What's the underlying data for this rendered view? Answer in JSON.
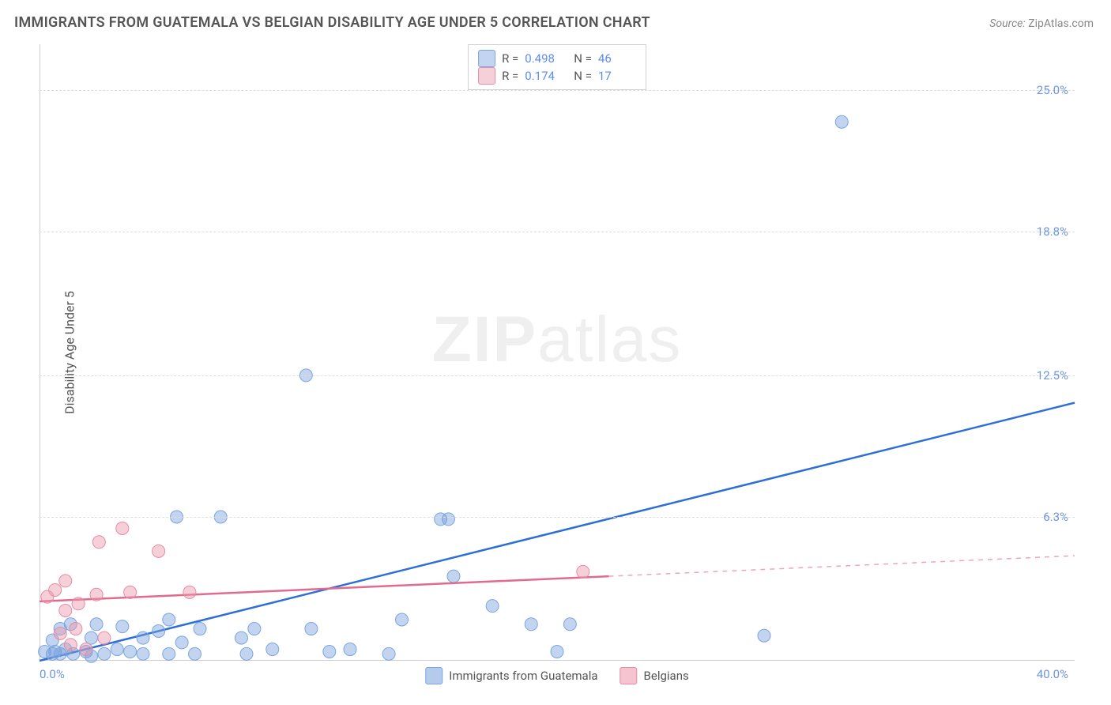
{
  "title": "IMMIGRANTS FROM GUATEMALA VS BELGIAN DISABILITY AGE UNDER 5 CORRELATION CHART",
  "source_label": "Source:",
  "source_value": "ZipAtlas.com",
  "ylabel": "Disability Age Under 5",
  "watermark": {
    "bold": "ZIP",
    "rest": "atlas"
  },
  "chart": {
    "type": "scatter-with-regression",
    "plot_bg": "#ffffff",
    "grid_color": "#dedede",
    "axis_color": "#cfcfcf",
    "tick_color": "#6b95e0",
    "label_fontsize": 16,
    "tick_fontsize": 15,
    "xlim": [
      0,
      40
    ],
    "ylim": [
      0,
      27
    ],
    "xticks": [
      {
        "pos": 0,
        "label": "0.0%",
        "side": "left"
      },
      {
        "pos": 40,
        "label": "40.0%",
        "side": "right"
      }
    ],
    "yticks": [
      {
        "pos": 25.0,
        "label": "25.0%"
      },
      {
        "pos": 18.8,
        "label": "18.8%"
      },
      {
        "pos": 12.5,
        "label": "12.5%"
      },
      {
        "pos": 6.3,
        "label": "6.3%"
      }
    ],
    "marker_radius": 8,
    "marker_stroke_width": 1,
    "line_width": 2.5,
    "series": [
      {
        "name": "Immigrants from Guatemala",
        "fill": "rgba(120,160,220,0.45)",
        "stroke": "#7aa6e0",
        "line_color": "#2e6fd6",
        "R": "0.498",
        "N": "46",
        "reg_line": {
          "x1": 0,
          "y1": 0,
          "x2": 40,
          "y2": 11.3
        },
        "dashed_ext": null,
        "points": [
          [
            0.2,
            0.4
          ],
          [
            0.5,
            0.3
          ],
          [
            0.5,
            0.9
          ],
          [
            0.6,
            0.4
          ],
          [
            0.8,
            1.4
          ],
          [
            0.8,
            0.3
          ],
          [
            1.0,
            0.5
          ],
          [
            1.2,
            1.6
          ],
          [
            1.3,
            0.3
          ],
          [
            1.8,
            0.4
          ],
          [
            2.0,
            1.0
          ],
          [
            2.0,
            0.2
          ],
          [
            2.2,
            1.6
          ],
          [
            2.5,
            0.3
          ],
          [
            3.0,
            0.5
          ],
          [
            3.2,
            1.5
          ],
          [
            3.5,
            0.4
          ],
          [
            4.0,
            0.3
          ],
          [
            4.0,
            1.0
          ],
          [
            4.6,
            1.3
          ],
          [
            5.0,
            0.3
          ],
          [
            5.0,
            1.8
          ],
          [
            5.5,
            0.8
          ],
          [
            5.3,
            6.3
          ],
          [
            6.0,
            0.3
          ],
          [
            6.2,
            1.4
          ],
          [
            7.0,
            6.3
          ],
          [
            7.8,
            1.0
          ],
          [
            8.0,
            0.3
          ],
          [
            8.3,
            1.4
          ],
          [
            9.0,
            0.5
          ],
          [
            10.5,
            1.4
          ],
          [
            11.2,
            0.4
          ],
          [
            12.0,
            0.5
          ],
          [
            13.5,
            0.3
          ],
          [
            14.0,
            1.8
          ],
          [
            15.5,
            6.2
          ],
          [
            15.8,
            6.2
          ],
          [
            16.0,
            3.7
          ],
          [
            17.5,
            2.4
          ],
          [
            19.0,
            1.6
          ],
          [
            20.0,
            0.4
          ],
          [
            20.5,
            1.6
          ],
          [
            28.0,
            1.1
          ],
          [
            31.0,
            23.6
          ],
          [
            10.3,
            12.5
          ]
        ]
      },
      {
        "name": "Belgians",
        "fill": "rgba(235,150,170,0.45)",
        "stroke": "#e68aa6",
        "line_color": "#e36a8f",
        "R": "0.174",
        "N": "17",
        "reg_line": {
          "x1": 0,
          "y1": 2.6,
          "x2": 22,
          "y2": 3.7
        },
        "dashed_ext": {
          "x1": 22,
          "y1": 3.7,
          "x2": 40,
          "y2": 4.6
        },
        "points": [
          [
            0.3,
            2.8
          ],
          [
            0.6,
            3.1
          ],
          [
            0.8,
            1.2
          ],
          [
            1.0,
            2.2
          ],
          [
            1.0,
            3.5
          ],
          [
            1.2,
            0.7
          ],
          [
            1.4,
            1.4
          ],
          [
            1.5,
            2.5
          ],
          [
            1.8,
            0.5
          ],
          [
            2.2,
            2.9
          ],
          [
            2.3,
            5.2
          ],
          [
            2.5,
            1.0
          ],
          [
            3.2,
            5.8
          ],
          [
            3.5,
            3.0
          ],
          [
            4.6,
            4.8
          ],
          [
            5.8,
            3.0
          ],
          [
            21.0,
            3.9
          ]
        ]
      }
    ],
    "bottom_legend": [
      {
        "swatch": "blue",
        "label": "Immigrants from Guatemala"
      },
      {
        "swatch": "pink",
        "label": "Belgians"
      }
    ]
  }
}
